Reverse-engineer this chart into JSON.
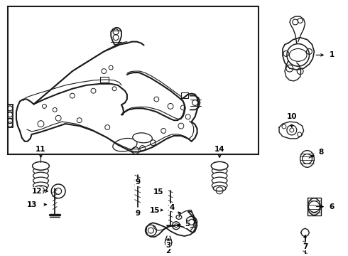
{
  "bg_color": "#ffffff",
  "border_color": "#000000",
  "line_color": "#1a1a1a",
  "text_color": "#000000",
  "fig_width": 4.9,
  "fig_height": 3.6,
  "dpi": 100
}
